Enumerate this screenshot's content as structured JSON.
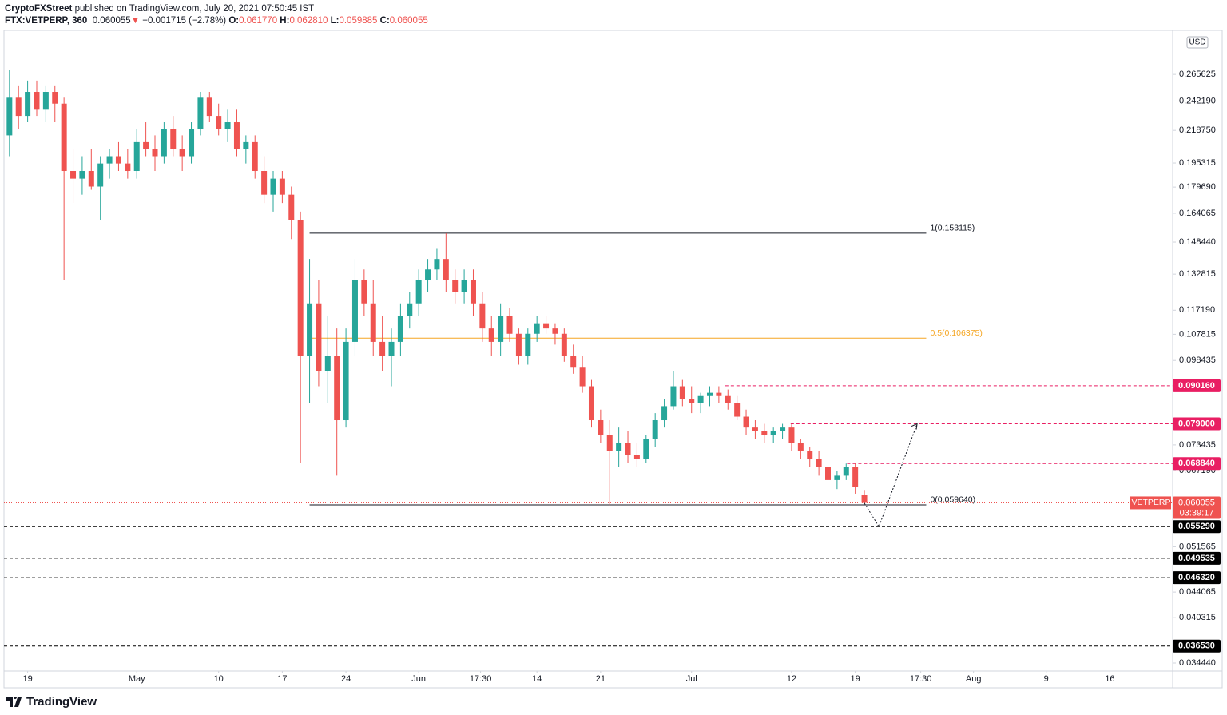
{
  "header": {
    "publisher": "CryptoFXStreet",
    "published": "published on TradingView.com, July 20, 2021 07:50:45 IST",
    "symbol": "FTX:VETPERP, 360",
    "last": "0.060055",
    "change": "−0.001715 (−2.78%)",
    "o_label": "O:",
    "o": "0.061770",
    "h_label": "H:",
    "h": "0.062810",
    "l_label": "L:",
    "l": "0.059885",
    "c_label": "C:",
    "c": "0.060055"
  },
  "footer": {
    "brand": "TradingView"
  },
  "chart_data": {
    "type": "candlestick",
    "log_scale": true,
    "grid": false,
    "currency": "USD",
    "up_color": "#26a69a",
    "down_color": "#ef5350",
    "xlim": [
      106.4,
      234.9
    ],
    "ylim": [
      0.0335,
      0.3095
    ],
    "xticks": [
      {
        "value": 109,
        "label": "19"
      },
      {
        "value": 121,
        "label": "May"
      },
      {
        "value": 130,
        "label": "10"
      },
      {
        "value": 137,
        "label": "17"
      },
      {
        "value": 144,
        "label": "24"
      },
      {
        "value": 152,
        "label": "Jun"
      },
      {
        "value": 158.8,
        "label": "17:30"
      },
      {
        "value": 165,
        "label": "14"
      },
      {
        "value": 172,
        "label": "21"
      },
      {
        "value": 182,
        "label": "Jul"
      },
      {
        "value": 193,
        "label": "12"
      },
      {
        "value": 200,
        "label": "19"
      },
      {
        "value": 207.2,
        "label": "17:30"
      },
      {
        "value": 213,
        "label": "Aug"
      },
      {
        "value": 221,
        "label": "9"
      },
      {
        "value": 228,
        "label": "16"
      }
    ],
    "yticks": [
      0.265625,
      {
        "value": 0.24219,
        "label": "0.242190"
      },
      {
        "value": 0.21875,
        "label": "0.218750"
      },
      0.195315,
      {
        "value": 0.17969,
        "label": "0.179690"
      },
      0.164065,
      {
        "value": 0.14844,
        "label": "0.148440"
      },
      0.132815,
      {
        "value": 0.11719,
        "label": "0.117190"
      },
      0.107815,
      0.098435,
      0.073435,
      {
        "value": 0.06719,
        "label": "0.067190"
      },
      0.051565,
      0.044065,
      0.040315,
      {
        "value": 0.03444,
        "label": "0.034440"
      }
    ],
    "x": [
      107,
      108,
      109,
      110,
      111,
      112,
      113,
      114,
      115,
      116,
      117,
      118,
      119,
      120,
      121,
      122,
      123,
      124,
      125,
      126,
      127,
      128,
      129,
      130,
      131,
      132,
      133,
      134,
      135,
      136,
      137,
      138,
      139,
      140,
      141,
      142,
      143,
      144,
      145,
      146,
      147,
      148,
      149,
      150,
      151,
      152,
      153,
      154,
      155,
      156,
      157,
      158,
      159,
      160,
      161,
      162,
      163,
      164,
      165,
      166,
      167,
      168,
      169,
      170,
      171,
      172,
      173,
      174,
      175,
      176,
      177,
      178,
      179,
      180,
      181,
      182,
      183,
      184,
      185,
      186,
      187,
      188,
      189,
      190,
      191,
      192,
      193,
      194,
      195,
      196,
      197,
      198,
      199,
      200,
      201
    ],
    "open": [
      0.215,
      0.245,
      0.23,
      0.25,
      0.235,
      0.25,
      0.24,
      0.19,
      0.185,
      0.19,
      0.18,
      0.195,
      0.2,
      0.195,
      0.19,
      0.21,
      0.205,
      0.2,
      0.22,
      0.205,
      0.2,
      0.22,
      0.245,
      0.23,
      0.22,
      0.225,
      0.205,
      0.21,
      0.19,
      0.175,
      0.185,
      0.175,
      0.16,
      0.1,
      0.12,
      0.095,
      0.1,
      0.08,
      0.105,
      0.13,
      0.12,
      0.105,
      0.1,
      0.105,
      0.115,
      0.12,
      0.13,
      0.135,
      0.14,
      0.13,
      0.125,
      0.13,
      0.12,
      0.11,
      0.105,
      0.115,
      0.108,
      0.1,
      0.108,
      0.112,
      0.11,
      0.108,
      0.1,
      0.096,
      0.09,
      0.08,
      0.076,
      0.072,
      0.074,
      0.071,
      0.07,
      0.075,
      0.08,
      0.084,
      0.09,
      0.086,
      0.085,
      0.087,
      0.088,
      0.087,
      0.085,
      0.081,
      0.078,
      0.077,
      0.076,
      0.077,
      0.078,
      0.074,
      0.072,
      0.07,
      0.068,
      0.065,
      0.066,
      0.068,
      0.06177
    ],
    "high": [
      0.27,
      0.255,
      0.26,
      0.26,
      0.255,
      0.255,
      0.245,
      0.205,
      0.2,
      0.205,
      0.2,
      0.205,
      0.21,
      0.205,
      0.22,
      0.225,
      0.215,
      0.225,
      0.23,
      0.215,
      0.225,
      0.25,
      0.25,
      0.24,
      0.235,
      0.235,
      0.215,
      0.215,
      0.2,
      0.19,
      0.19,
      0.18,
      0.165,
      0.14,
      0.13,
      0.115,
      0.11,
      0.11,
      0.14,
      0.135,
      0.13,
      0.115,
      0.11,
      0.12,
      0.125,
      0.135,
      0.14,
      0.145,
      0.153,
      0.135,
      0.135,
      0.135,
      0.125,
      0.115,
      0.12,
      0.118,
      0.11,
      0.11,
      0.115,
      0.115,
      0.112,
      0.11,
      0.104,
      0.1,
      0.092,
      0.083,
      0.08,
      0.078,
      0.077,
      0.074,
      0.076,
      0.082,
      0.086,
      0.095,
      0.092,
      0.09,
      0.088,
      0.09,
      0.09,
      0.089,
      0.087,
      0.083,
      0.08,
      0.079,
      0.078,
      0.079,
      0.079,
      0.075,
      0.073,
      0.072,
      0.069,
      0.067,
      0.06884,
      0.069,
      0.06281
    ],
    "low": [
      0.2,
      0.22,
      0.225,
      0.23,
      0.225,
      0.225,
      0.13,
      0.17,
      0.175,
      0.178,
      0.16,
      0.185,
      0.19,
      0.185,
      0.185,
      0.2,
      0.19,
      0.195,
      0.2,
      0.19,
      0.195,
      0.215,
      0.225,
      0.215,
      0.21,
      0.2,
      0.195,
      0.185,
      0.17,
      0.165,
      0.17,
      0.15,
      0.069,
      0.085,
      0.09,
      0.085,
      0.066,
      0.078,
      0.1,
      0.115,
      0.1,
      0.095,
      0.09,
      0.1,
      0.11,
      0.115,
      0.125,
      0.13,
      0.125,
      0.12,
      0.12,
      0.115,
      0.105,
      0.1,
      0.1,
      0.105,
      0.097,
      0.097,
      0.105,
      0.108,
      0.104,
      0.098,
      0.094,
      0.088,
      0.078,
      0.074,
      0.0596,
      0.068,
      0.069,
      0.068,
      0.069,
      0.073,
      0.078,
      0.083,
      0.084,
      0.082,
      0.082,
      0.084,
      0.085,
      0.083,
      0.08,
      0.076,
      0.075,
      0.074,
      0.074,
      0.075,
      0.072,
      0.07,
      0.068,
      0.066,
      0.064,
      0.063,
      0.065,
      0.062,
      0.059885
    ],
    "close": [
      0.245,
      0.23,
      0.25,
      0.235,
      0.25,
      0.24,
      0.19,
      0.185,
      0.19,
      0.18,
      0.195,
      0.2,
      0.195,
      0.19,
      0.21,
      0.205,
      0.2,
      0.22,
      0.205,
      0.2,
      0.22,
      0.245,
      0.23,
      0.22,
      0.225,
      0.205,
      0.21,
      0.19,
      0.175,
      0.185,
      0.175,
      0.16,
      0.1,
      0.12,
      0.095,
      0.1,
      0.08,
      0.105,
      0.13,
      0.12,
      0.105,
      0.1,
      0.105,
      0.115,
      0.12,
      0.13,
      0.135,
      0.14,
      0.13,
      0.125,
      0.13,
      0.12,
      0.11,
      0.105,
      0.115,
      0.108,
      0.1,
      0.108,
      0.112,
      0.11,
      0.108,
      0.1,
      0.096,
      0.09,
      0.08,
      0.076,
      0.072,
      0.074,
      0.071,
      0.07,
      0.075,
      0.08,
      0.084,
      0.09,
      0.086,
      0.085,
      0.087,
      0.088,
      0.087,
      0.085,
      0.081,
      0.078,
      0.077,
      0.076,
      0.077,
      0.078,
      0.074,
      0.072,
      0.07,
      0.068,
      0.065,
      0.066,
      0.068,
      0.0635,
      0.060055
    ],
    "fib_range": [
      140,
      207.8
    ],
    "fib_levels": [
      {
        "label": "1(0.153115)",
        "value": 0.153115,
        "color": "#131722"
      },
      {
        "label": "0.5(0.106375)",
        "value": 0.106375,
        "color": "#f5a623"
      },
      {
        "label": "0(0.059640)",
        "value": 0.05964,
        "color": "#131722"
      }
    ],
    "levels": [
      {
        "value": 0.09016,
        "label": "0.090160",
        "color": "#e91e63",
        "x_start": 185.7
      },
      {
        "value": 0.079,
        "label": "0.079000",
        "color": "#e91e63",
        "x_start": 192.9
      },
      {
        "value": 0.06884,
        "label": "0.068840",
        "color": "#e91e63",
        "x_start": 199.1
      },
      {
        "value": 0.05529,
        "label": "0.055290",
        "color": "#000000"
      },
      {
        "value": 0.049535,
        "label": "0.049535",
        "color": "#000000"
      },
      {
        "value": 0.04632,
        "label": "0.046320",
        "color": "#000000"
      },
      {
        "value": 0.03653,
        "label": "0.036530",
        "color": "#000000"
      }
    ],
    "current": {
      "symbol": "VETPERP",
      "value": 0.060055,
      "label": "0.060055",
      "countdown": "03:39:17",
      "color": "#ef5350"
    },
    "projection": {
      "x": [
        201,
        202.6,
        206.8
      ],
      "y": [
        0.06,
        0.0553,
        0.079
      ]
    }
  }
}
